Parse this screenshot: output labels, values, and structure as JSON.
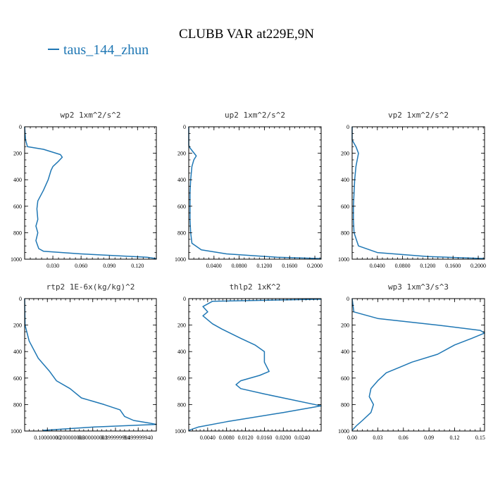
{
  "figure": {
    "title": "CLUBB VAR at229E,9N",
    "legend": [
      {
        "name": "taus_144_zhun",
        "color": "#1f77b4"
      }
    ]
  },
  "chart_data": [
    {
      "type": "line",
      "title": "wp2  1xm^2/s^2",
      "xlim": [
        0.0,
        0.14
      ],
      "ylim": [
        1000,
        0
      ],
      "xticks": [
        0.03,
        0.06,
        0.09,
        0.12
      ],
      "xtick_labels": [
        "0.030",
        "0.060",
        "0.090",
        "0.120"
      ],
      "yticks": [
        0,
        200,
        400,
        600,
        800,
        1000
      ],
      "ytick_labels": [
        "0",
        "200",
        "400",
        "600",
        "800",
        "1000"
      ],
      "series": [
        {
          "color": "#1f77b4",
          "x": [
            0.0,
            0.001,
            0.003,
            0.02,
            0.038,
            0.04,
            0.036,
            0.03,
            0.028,
            0.025,
            0.02,
            0.014,
            0.013,
            0.014,
            0.012,
            0.014,
            0.012,
            0.015,
            0.02,
            0.06,
            0.13,
            0.14
          ],
          "y": [
            0,
            100,
            150,
            170,
            210,
            230,
            260,
            300,
            330,
            400,
            480,
            560,
            620,
            700,
            750,
            800,
            860,
            920,
            940,
            960,
            985,
            995
          ]
        }
      ]
    },
    {
      "type": "line",
      "title": "up2  1xm^2/s^2",
      "xlim": [
        0.0,
        0.21
      ],
      "ylim": [
        1000,
        0
      ],
      "xticks": [
        0.04,
        0.08,
        0.12,
        0.16,
        0.2
      ],
      "xtick_labels": [
        "0.0400",
        "0.0800",
        "0.1200",
        "0.1600",
        "0.2000"
      ],
      "yticks": [
        0,
        200,
        400,
        600,
        800,
        1000
      ],
      "ytick_labels": [
        "0",
        "200",
        "400",
        "600",
        "800",
        "1000"
      ],
      "series": [
        {
          "color": "#1f77b4",
          "x": [
            0.0,
            0.0,
            0.002,
            0.012,
            0.008,
            0.005,
            0.003,
            0.002,
            0.002,
            0.002,
            0.003,
            0.005,
            0.02,
            0.06,
            0.14,
            0.21
          ],
          "y": [
            0,
            140,
            160,
            220,
            250,
            300,
            400,
            500,
            600,
            700,
            800,
            880,
            930,
            960,
            985,
            995
          ]
        }
      ]
    },
    {
      "type": "line",
      "title": "vp2  1xm^2/s^2",
      "xlim": [
        0.0,
        0.21
      ],
      "ylim": [
        1000,
        0
      ],
      "xticks": [
        0.04,
        0.08,
        0.12,
        0.16,
        0.2
      ],
      "xtick_labels": [
        "0.0400",
        "0.0800",
        "0.1200",
        "0.1600",
        "0.2000"
      ],
      "yticks": [
        0,
        200,
        400,
        600,
        800,
        1000
      ],
      "ytick_labels": [
        "0",
        "200",
        "400",
        "600",
        "800",
        "1000"
      ],
      "series": [
        {
          "color": "#1f77b4",
          "x": [
            0.0,
            0.0,
            0.006,
            0.01,
            0.008,
            0.006,
            0.004,
            0.003,
            0.002,
            0.002,
            0.003,
            0.01,
            0.04,
            0.12,
            0.21
          ],
          "y": [
            0,
            100,
            150,
            200,
            250,
            300,
            400,
            500,
            600,
            700,
            800,
            900,
            950,
            980,
            995
          ]
        }
      ]
    },
    {
      "type": "line",
      "title": "rtp2  1E-6x(kg/kg)^2",
      "xlim": [
        0.0,
        0.58
      ],
      "ylim": [
        1000,
        0
      ],
      "xticks": [
        0.1,
        0.2,
        0.3,
        0.4,
        0.5
      ],
      "xtick_labels": [
        "0.10000000",
        "0.200000000",
        "0.300000001",
        "0.399999991",
        "0.499999940"
      ],
      "yticks": [
        0,
        200,
        400,
        600,
        800,
        1000
      ],
      "ytick_labels": [
        "0",
        "200",
        "400",
        "600",
        "800",
        "1000"
      ],
      "series": [
        {
          "color": "#1f77b4",
          "x": [
            0.0,
            0.002,
            0.02,
            0.06,
            0.11,
            0.14,
            0.2,
            0.25,
            0.35,
            0.42,
            0.44,
            0.48,
            0.55,
            0.58,
            0.3,
            0.08
          ],
          "y": [
            0,
            200,
            320,
            450,
            550,
            620,
            680,
            750,
            800,
            840,
            890,
            920,
            940,
            950,
            970,
            995
          ]
        }
      ]
    },
    {
      "type": "line",
      "title": "thlp2  1xK^2",
      "xlim": [
        0.0,
        0.028
      ],
      "ylim": [
        1000,
        0
      ],
      "xticks": [
        0.004,
        0.008,
        0.012,
        0.016,
        0.02,
        0.024
      ],
      "xtick_labels": [
        "0.0040",
        "0.0080",
        "0.0120",
        "0.0160",
        "0.0200",
        "0.0240"
      ],
      "yticks": [
        0,
        200,
        400,
        600,
        800,
        1000
      ],
      "ytick_labels": [
        "0",
        "200",
        "400",
        "600",
        "800",
        "1000"
      ],
      "series": [
        {
          "color": "#1f77b4",
          "x": [
            0.028,
            0.005,
            0.003,
            0.004,
            0.003,
            0.005,
            0.007,
            0.011,
            0.014,
            0.016,
            0.016,
            0.017,
            0.015,
            0.011,
            0.01,
            0.011,
            0.016,
            0.028,
            0.02,
            0.008,
            0.002,
            0.0
          ],
          "y": [
            5,
            20,
            60,
            100,
            130,
            190,
            230,
            300,
            350,
            400,
            480,
            550,
            580,
            620,
            650,
            680,
            720,
            810,
            860,
            930,
            970,
            995
          ]
        }
      ]
    },
    {
      "type": "line",
      "title": "wp3  1xm^3/s^3",
      "xlim": [
        0.0,
        0.155
      ],
      "ylim": [
        1000,
        0
      ],
      "xticks": [
        0.0,
        0.03,
        0.06,
        0.09,
        0.12,
        0.15
      ],
      "xtick_labels": [
        "0.00",
        "0.03",
        "0.06",
        "0.09",
        "0.12",
        "0.15"
      ],
      "yticks": [
        0,
        200,
        400,
        600,
        800,
        1000
      ],
      "ytick_labels": [
        "0",
        "200",
        "400",
        "600",
        "800",
        "1000"
      ],
      "series": [
        {
          "color": "#1f77b4",
          "x": [
            0.0,
            0.002,
            0.03,
            0.1,
            0.15,
            0.155,
            0.14,
            0.12,
            0.1,
            0.07,
            0.055,
            0.04,
            0.03,
            0.022,
            0.02,
            0.025,
            0.022,
            0.012,
            0.005,
            0.0
          ],
          "y": [
            0,
            100,
            150,
            200,
            240,
            260,
            300,
            350,
            420,
            480,
            520,
            560,
            620,
            680,
            740,
            800,
            860,
            920,
            960,
            995
          ]
        }
      ]
    }
  ]
}
